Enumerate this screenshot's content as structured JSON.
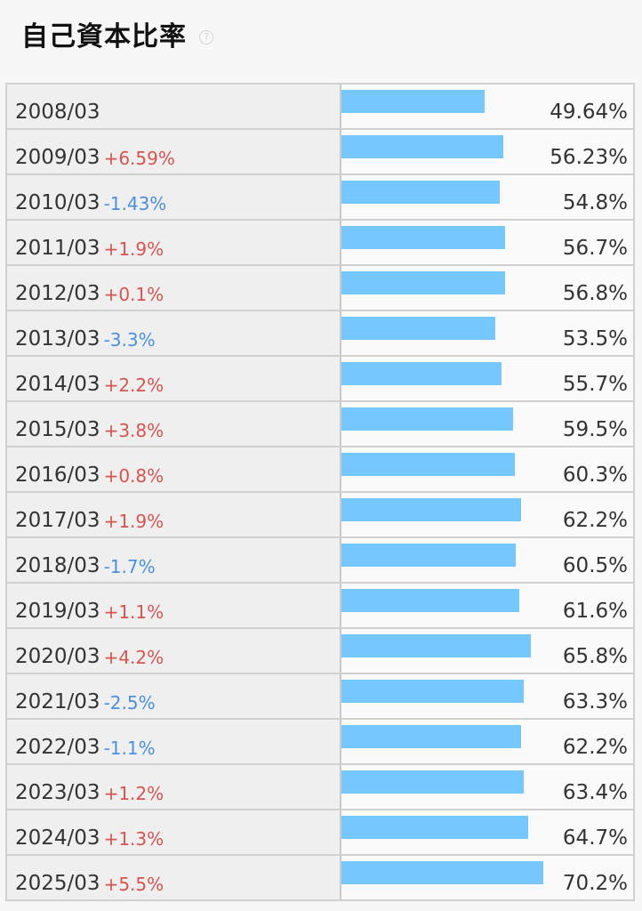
{
  "header": {
    "title": "自己資本比率",
    "help_icon": "?"
  },
  "colors": {
    "bar": "#74c8ff",
    "increase": "#d9534f",
    "decrease": "#4a90e2"
  },
  "chart_data": {
    "type": "bar",
    "orientation": "horizontal",
    "xlim": [
      0,
      100
    ],
    "unit": "%",
    "categories": [
      "2008/03",
      "2009/03",
      "2010/03",
      "2011/03",
      "2012/03",
      "2013/03",
      "2014/03",
      "2015/03",
      "2016/03",
      "2017/03",
      "2018/03",
      "2019/03",
      "2020/03",
      "2021/03",
      "2022/03",
      "2023/03",
      "2024/03",
      "2025/03"
    ],
    "values": [
      49.64,
      56.23,
      54.8,
      56.7,
      56.8,
      53.5,
      55.7,
      59.5,
      60.3,
      62.2,
      60.5,
      61.6,
      65.8,
      63.3,
      62.2,
      63.4,
      64.7,
      70.2
    ],
    "value_labels": [
      "49.64%",
      "56.23%",
      "54.8%",
      "56.7%",
      "56.8%",
      "53.5%",
      "55.7%",
      "59.5%",
      "60.3%",
      "62.2%",
      "60.5%",
      "61.6%",
      "65.8%",
      "63.3%",
      "62.2%",
      "63.4%",
      "64.7%",
      "70.2%"
    ],
    "changes": [
      "",
      "+6.59%",
      "-1.43%",
      "+1.9%",
      "+0.1%",
      "-3.3%",
      "+2.2%",
      "+3.8%",
      "+0.8%",
      "+1.9%",
      "-1.7%",
      "+1.1%",
      "+4.2%",
      "-2.5%",
      "-1.1%",
      "+1.2%",
      "+1.3%",
      "+5.5%"
    ]
  }
}
